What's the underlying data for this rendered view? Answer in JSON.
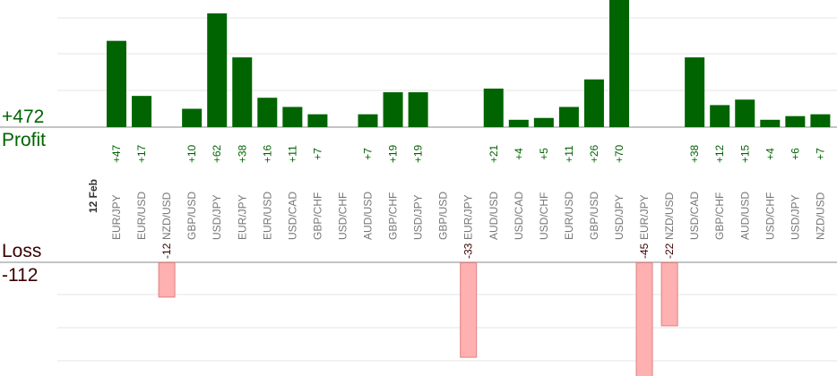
{
  "summary": {
    "profit_total": "+472",
    "profit_label": "Profit",
    "loss_label": "Loss",
    "loss_total": "-112"
  },
  "chart_data": {
    "type": "bar",
    "date_label": "12 Feb",
    "colors": {
      "profit": "#006400",
      "loss": "#ffb0b0",
      "loss_border": "#e08080",
      "grid": "#e6e6e6",
      "axis": "#888888"
    },
    "categories": [
      "EUR/JPY",
      "EUR/USD",
      "NZD/USD",
      "GBP/USD",
      "USD/JPY",
      "EUR/JPY",
      "EUR/USD",
      "USD/CAD",
      "GBP/CHF",
      "USD/CHF",
      "AUD/USD",
      "GBP/CHF",
      "USD/JPY",
      "GBP/USD",
      "EUR/JPY",
      "AUD/USD",
      "USD/CAD",
      "USD/CHF",
      "EUR/USD",
      "GBP/USD",
      "USD/JPY",
      "EUR/JPY",
      "NZD/USD",
      "USD/CAD",
      "GBP/CHF",
      "AUD/USD",
      "USD/CHF",
      "USD/JPY",
      "NZD/USD"
    ],
    "profit_values": [
      47,
      17,
      null,
      10,
      62,
      38,
      16,
      11,
      7,
      null,
      7,
      19,
      19,
      null,
      null,
      21,
      4,
      5,
      11,
      26,
      70,
      null,
      null,
      38,
      12,
      15,
      4,
      6,
      7
    ],
    "profit_labels": [
      "+47",
      "+17",
      "",
      "+10",
      "+62",
      "+38",
      "+16",
      "+11",
      "+7",
      "",
      "+7",
      "+19",
      "+19",
      "",
      "",
      "+21",
      "+4",
      "+5",
      "+11",
      "+26",
      "+70",
      "",
      "",
      "+38",
      "+12",
      "+15",
      "+4",
      "+6",
      "+7"
    ],
    "loss_values": [
      null,
      null,
      -12,
      null,
      null,
      null,
      null,
      null,
      null,
      null,
      null,
      null,
      null,
      null,
      -33,
      null,
      null,
      null,
      null,
      null,
      null,
      -45,
      -22,
      null,
      null,
      null,
      null,
      null,
      null
    ],
    "loss_labels": [
      "",
      "",
      "-12",
      "",
      "",
      "",
      "",
      "",
      "",
      "",
      "",
      "",
      "",
      "",
      "-33",
      "",
      "",
      "",
      "",
      "",
      "",
      "-45",
      "-22",
      "",
      "",
      "",
      "",
      "",
      ""
    ]
  }
}
